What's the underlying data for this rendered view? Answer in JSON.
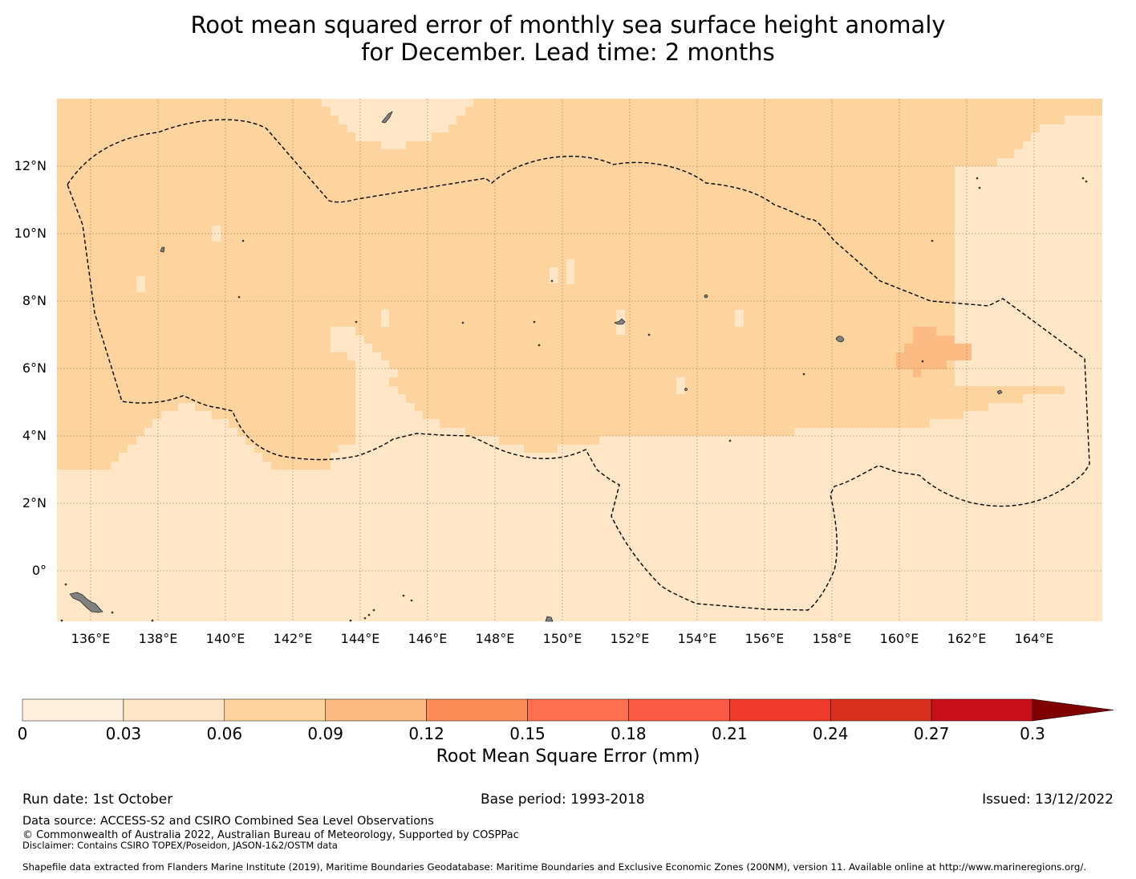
{
  "title": {
    "line1": "Root mean squared error of monthly sea surface height anomaly",
    "line2": "for December. Lead time: 2 months"
  },
  "map": {
    "longitude_ticks": [
      "136°E",
      "138°E",
      "140°E",
      "142°E",
      "144°E",
      "146°E",
      "148°E",
      "150°E",
      "152°E",
      "154°E",
      "156°E",
      "158°E",
      "160°E",
      "162°E",
      "164°E"
    ],
    "latitude_ticks": [
      "12°N",
      "10°N",
      "8°N",
      "6°N",
      "4°N",
      "2°N",
      "0°"
    ],
    "eez_boundary": "dashed line",
    "field_colors": {
      "band_0_03_0_06": "#fee6c6",
      "band_0_06_0_09": "#fdd49e",
      "band_0_09_0_12": "#fdbb84",
      "land": "#808080"
    }
  },
  "colorbar": {
    "ticks": [
      "0",
      "0.03",
      "0.06",
      "0.09",
      "0.12",
      "0.15",
      "0.18",
      "0.21",
      "0.24",
      "0.27",
      "0.3"
    ],
    "colors": [
      "#fff0e0",
      "#fee6c6",
      "#fdd49e",
      "#fdbb84",
      "#fc8d59",
      "#fc7050",
      "#fb5a45",
      "#ef3b2c",
      "#d7301f",
      "#c8101a",
      "#b30000"
    ],
    "extend_color": "#7f0000",
    "label": "Root Mean Square Error (mm)"
  },
  "footer": {
    "run_date": "Run date: 1st October",
    "base_period": "Base period: 1993-2018",
    "issued": "Issued: 13/12/2022",
    "data_source": "Data source: ACCESS-S2 and CSIRO Combined Sea Level Observations",
    "copyright": "© Commonwealth of Australia 2022, Australian Bureau of Meteorology, Supported by COSPPac",
    "disclaimer": "Disclaimer: Contains CSIRO TOPEX/Poseidon, JASON-1&2/OSTM data",
    "shapefile": "Shapefile data extracted from Flanders Marine Institute (2019), Maritime Boundaries Geodatabase: Maritime Boundaries and Exclusive Economic Zones (200NM), version 11. Available online at http://www.marineregions.org/."
  }
}
